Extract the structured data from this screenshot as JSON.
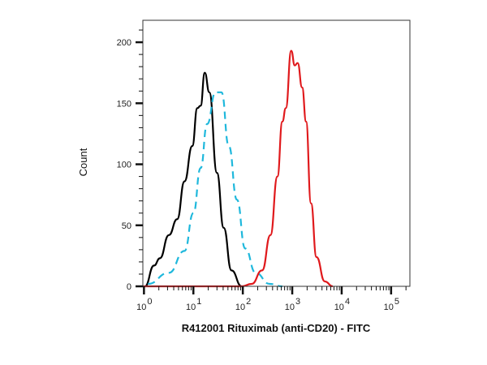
{
  "chart_data": {
    "type": "line",
    "title": "",
    "xlabel": "R412001 Rituximab (anti-CD20) - FITC",
    "ylabel": "Count",
    "xscale": "log",
    "xlim": [
      0.95,
      240000
    ],
    "ylim": [
      0,
      218
    ],
    "x_ticks": [
      {
        "base": "10",
        "exp": "0",
        "value": 1
      },
      {
        "base": "10",
        "exp": "1",
        "value": 10
      },
      {
        "base": "10",
        "exp": "2",
        "value": 100
      },
      {
        "base": "10",
        "exp": "3",
        "value": 1000
      },
      {
        "base": "10",
        "exp": "4",
        "value": 10000
      },
      {
        "base": "10",
        "exp": "5",
        "value": 100000
      }
    ],
    "y_ticks": [
      "0",
      "50",
      "100",
      "150",
      "200"
    ],
    "grid": false,
    "legend": "none",
    "series": [
      {
        "color": "#000000",
        "style": "solid",
        "x": [
          1.05,
          1.6,
          2.1,
          3.2,
          4.7,
          6.6,
          9.5,
          12,
          14,
          17,
          21,
          30,
          41,
          59,
          95
        ],
        "y": [
          0,
          17,
          23,
          42,
          55,
          86,
          115,
          146,
          148,
          175,
          159,
          93,
          48,
          13,
          0
        ]
      },
      {
        "color": "#1fb8dc",
        "style": "dashed",
        "x": [
          1.2,
          3.2,
          6.6,
          10,
          14,
          19,
          28,
          37,
          52,
          76,
          112,
          182,
          347,
          631
        ],
        "y": [
          2,
          11,
          29,
          60,
          97,
          133,
          159,
          159,
          115,
          71,
          31,
          11,
          2,
          0
        ]
      },
      {
        "color": "#e0191c",
        "style": "solid",
        "x": [
          0.95,
          95,
          151,
          245,
          363,
          501,
          631,
          741,
          955,
          1122,
          1288,
          1585,
          1905,
          2399,
          3090,
          4571,
          6607
        ],
        "y": [
          0,
          0,
          2,
          13,
          42,
          90,
          135,
          146,
          193,
          181,
          183,
          163,
          135,
          68,
          24,
          4,
          0
        ]
      }
    ]
  }
}
